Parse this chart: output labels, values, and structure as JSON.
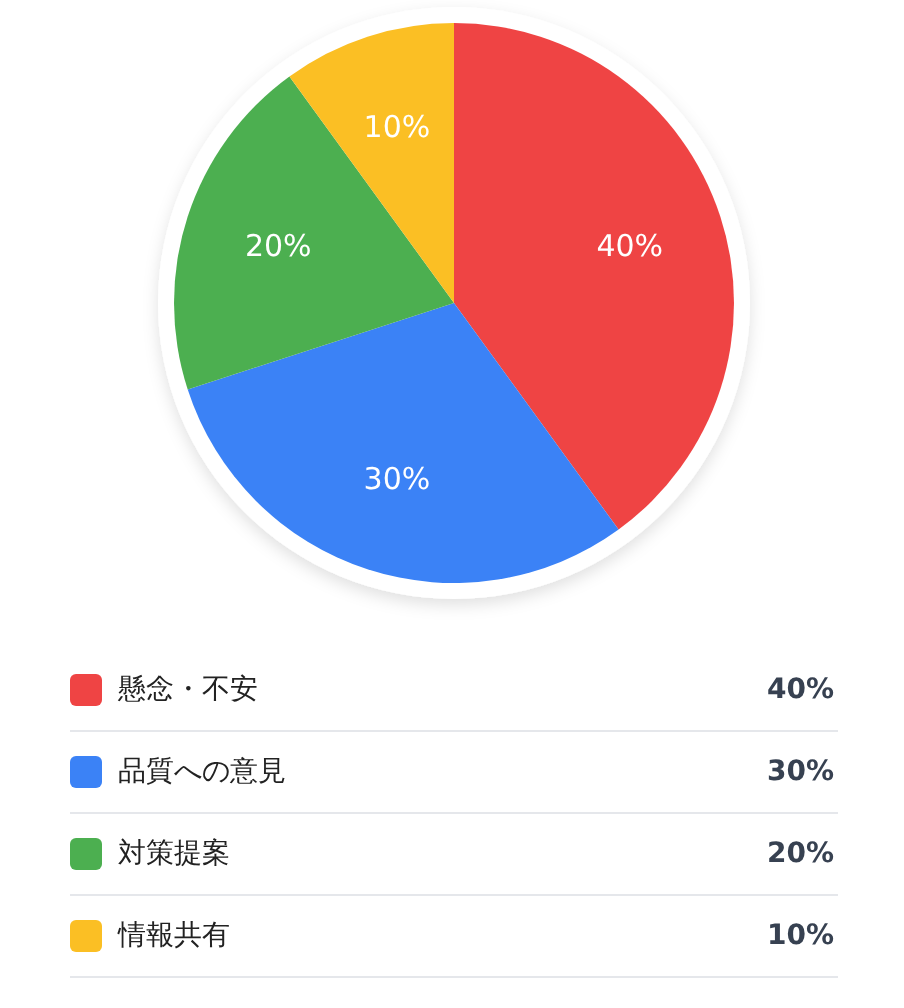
{
  "chart_data": {
    "type": "pie",
    "categories": [
      "懸念・不安",
      "品質への意見",
      "対策提案",
      "情報共有"
    ],
    "values": [
      40,
      30,
      20,
      10
    ],
    "value_labels": [
      "40%",
      "30%",
      "20%",
      "10%"
    ],
    "colors": [
      "#ef4444",
      "#3b82f6",
      "#4caf50",
      "#fbbf24"
    ],
    "legend": "bottom"
  }
}
